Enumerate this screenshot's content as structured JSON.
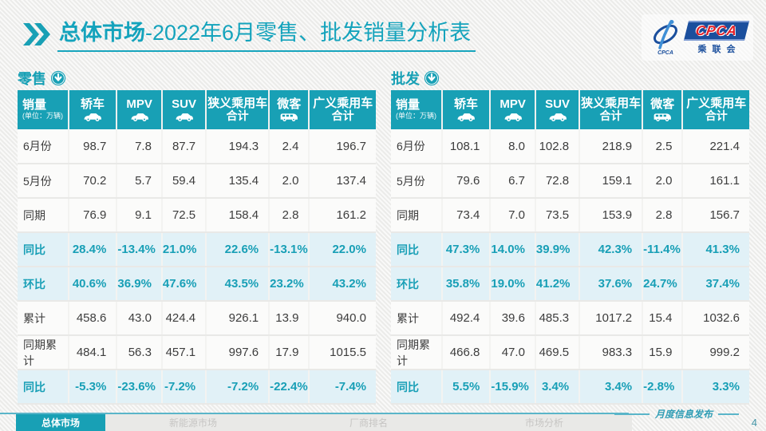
{
  "title": {
    "strong": "总体市场",
    "rest": "-2022年6月零售、批发销量分析表"
  },
  "logo": {
    "acronym": "CPCA",
    "org": "乘联会"
  },
  "watermark": "CPCA 乘联会",
  "columns": [
    {
      "label": "销量",
      "sub": "(单位：万辆)",
      "icon": null
    },
    {
      "label": "轿车",
      "sub": null,
      "icon": "car-icon"
    },
    {
      "label": "MPV",
      "sub": null,
      "icon": "car-icon"
    },
    {
      "label": "SUV",
      "sub": null,
      "icon": "car-icon"
    },
    {
      "label": "狭义乘用车",
      "sub": "合计",
      "icon": null
    },
    {
      "label": "微客",
      "sub": null,
      "icon": "van-icon"
    },
    {
      "label": "广义乘用车",
      "sub": "合计",
      "icon": null
    }
  ],
  "tables": [
    {
      "section": "零售",
      "rows": [
        {
          "label": "6月份",
          "highlight": false,
          "cells": [
            "98.7",
            "7.8",
            "87.7",
            "194.3",
            "2.4",
            "196.7"
          ]
        },
        {
          "label": "5月份",
          "highlight": false,
          "cells": [
            "70.2",
            "5.7",
            "59.4",
            "135.4",
            "2.0",
            "137.4"
          ]
        },
        {
          "label": "同期",
          "highlight": false,
          "cells": [
            "76.9",
            "9.1",
            "72.5",
            "158.4",
            "2.8",
            "161.2"
          ]
        },
        {
          "label": "同比",
          "highlight": true,
          "cells": [
            "28.4%",
            "-13.4%",
            "21.0%",
            "22.6%",
            "-13.1%",
            "22.0%"
          ]
        },
        {
          "label": "环比",
          "highlight": true,
          "cells": [
            "40.6%",
            "36.9%",
            "47.6%",
            "43.5%",
            "23.2%",
            "43.2%"
          ]
        },
        {
          "label": "累计",
          "highlight": false,
          "cells": [
            "458.6",
            "43.0",
            "424.4",
            "926.1",
            "13.9",
            "940.0"
          ]
        },
        {
          "label": "同期累计",
          "highlight": false,
          "cells": [
            "484.1",
            "56.3",
            "457.1",
            "997.6",
            "17.9",
            "1015.5"
          ]
        },
        {
          "label": "同比",
          "highlight": true,
          "cells": [
            "-5.3%",
            "-23.6%",
            "-7.2%",
            "-7.2%",
            "-22.4%",
            "-7.4%"
          ]
        }
      ]
    },
    {
      "section": "批发",
      "rows": [
        {
          "label": "6月份",
          "highlight": false,
          "cells": [
            "108.1",
            "8.0",
            "102.8",
            "218.9",
            "2.5",
            "221.4"
          ]
        },
        {
          "label": "5月份",
          "highlight": false,
          "cells": [
            "79.6",
            "6.7",
            "72.8",
            "159.1",
            "2.0",
            "161.1"
          ]
        },
        {
          "label": "同期",
          "highlight": false,
          "cells": [
            "73.4",
            "7.0",
            "73.5",
            "153.9",
            "2.8",
            "156.7"
          ]
        },
        {
          "label": "同比",
          "highlight": true,
          "cells": [
            "47.3%",
            "14.0%",
            "39.9%",
            "42.3%",
            "-11.4%",
            "41.3%"
          ]
        },
        {
          "label": "环比",
          "highlight": true,
          "cells": [
            "35.8%",
            "19.0%",
            "41.2%",
            "37.6%",
            "24.7%",
            "37.4%"
          ]
        },
        {
          "label": "累计",
          "highlight": false,
          "cells": [
            "492.4",
            "39.6",
            "485.3",
            "1017.2",
            "15.4",
            "1032.6"
          ]
        },
        {
          "label": "同期累计",
          "highlight": false,
          "cells": [
            "466.8",
            "47.0",
            "469.5",
            "983.3",
            "15.9",
            "999.2"
          ]
        },
        {
          "label": "同比",
          "highlight": true,
          "cells": [
            "5.5%",
            "-15.9%",
            "3.4%",
            "3.4%",
            "-2.8%",
            "3.3%"
          ]
        }
      ]
    }
  ],
  "footer": {
    "tabs": [
      "总体市场",
      "新能源市场",
      "厂商排名",
      "市场分析"
    ],
    "active_tab": "总体市场",
    "release_label": "月度信息发布",
    "page_number": "4"
  },
  "colors": {
    "teal": "#18a0b5",
    "highlight_row_bg": "#e1f1f7",
    "logo_blue": "#1b4f9d",
    "logo_red": "#e11e26"
  },
  "chart_data": [
    {
      "type": "table",
      "title": "零售",
      "unit": "万辆",
      "columns": [
        "销量(单位：万辆)",
        "轿车",
        "MPV",
        "SUV",
        "狭义乘用车合计",
        "微客",
        "广义乘用车合计"
      ],
      "rows": [
        [
          "6月份",
          98.7,
          7.8,
          87.7,
          194.3,
          2.4,
          196.7
        ],
        [
          "5月份",
          70.2,
          5.7,
          59.4,
          135.4,
          2.0,
          137.4
        ],
        [
          "同期",
          76.9,
          9.1,
          72.5,
          158.4,
          2.8,
          161.2
        ],
        [
          "同比",
          "28.4%",
          "-13.4%",
          "21.0%",
          "22.6%",
          "-13.1%",
          "22.0%"
        ],
        [
          "环比",
          "40.6%",
          "36.9%",
          "47.6%",
          "43.5%",
          "23.2%",
          "43.2%"
        ],
        [
          "累计",
          458.6,
          43.0,
          424.4,
          926.1,
          13.9,
          940.0
        ],
        [
          "同期累计",
          484.1,
          56.3,
          457.1,
          997.6,
          17.9,
          1015.5
        ],
        [
          "同比",
          "-5.3%",
          "-23.6%",
          "-7.2%",
          "-7.2%",
          "-22.4%",
          "-7.4%"
        ]
      ]
    },
    {
      "type": "table",
      "title": "批发",
      "unit": "万辆",
      "columns": [
        "销量(单位：万辆)",
        "轿车",
        "MPV",
        "SUV",
        "狭义乘用车合计",
        "微客",
        "广义乘用车合计"
      ],
      "rows": [
        [
          "6月份",
          108.1,
          8.0,
          102.8,
          218.9,
          2.5,
          221.4
        ],
        [
          "5月份",
          79.6,
          6.7,
          72.8,
          159.1,
          2.0,
          161.1
        ],
        [
          "同期",
          73.4,
          7.0,
          73.5,
          153.9,
          2.8,
          156.7
        ],
        [
          "同比",
          "47.3%",
          "14.0%",
          "39.9%",
          "42.3%",
          "-11.4%",
          "41.3%"
        ],
        [
          "环比",
          "35.8%",
          "19.0%",
          "41.2%",
          "37.6%",
          "24.7%",
          "37.4%"
        ],
        [
          "累计",
          492.4,
          39.6,
          485.3,
          1017.2,
          15.4,
          1032.6
        ],
        [
          "同期累计",
          466.8,
          47.0,
          469.5,
          983.3,
          15.9,
          999.2
        ],
        [
          "同比",
          "5.5%",
          "-15.9%",
          "3.4%",
          "3.4%",
          "-2.8%",
          "3.3%"
        ]
      ]
    }
  ]
}
